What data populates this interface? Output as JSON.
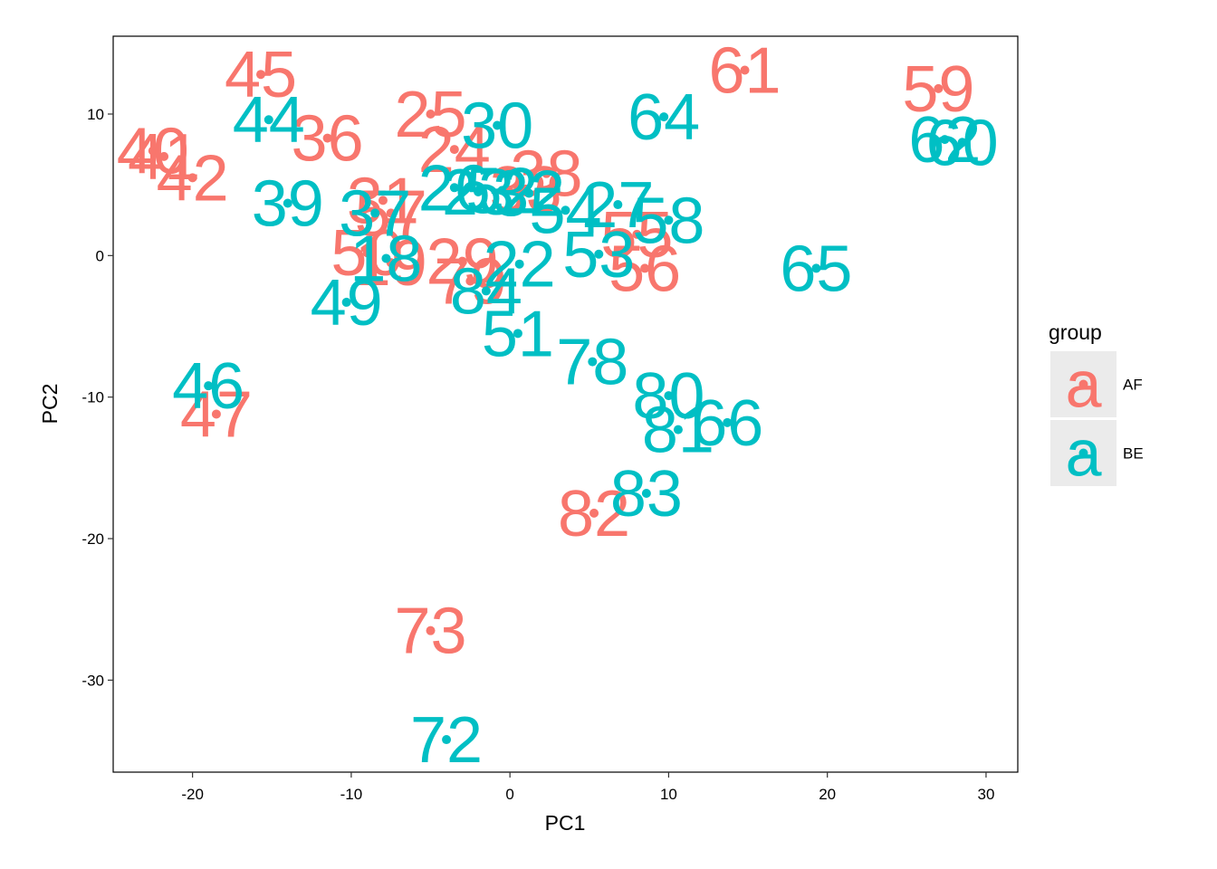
{
  "chart_data": {
    "type": "scatter",
    "title": "",
    "xlabel": "PC1",
    "ylabel": "PC2",
    "xlim": [
      -25,
      32
    ],
    "ylim": [
      -36.5,
      15.5
    ],
    "xticks": [
      -20,
      -10,
      0,
      10,
      20,
      30
    ],
    "yticks": [
      10,
      0,
      -10,
      -20,
      -30
    ],
    "xtick_labels": [
      "-20",
      "-10",
      "0",
      "10",
      "20",
      "30"
    ],
    "ytick_labels": [
      "10",
      "0",
      "-10",
      "-20",
      "-30"
    ],
    "grid": false,
    "legend": {
      "title": "group",
      "position": "right",
      "key_glyph": "a"
    },
    "colors": {
      "AF": "#F8766D",
      "BE": "#00BFC4"
    },
    "series": [
      {
        "name": "AF",
        "points": [
          {
            "label": "45",
            "x": -15.7,
            "y": 12.8
          },
          {
            "label": "61",
            "x": 14.8,
            "y": 13.1
          },
          {
            "label": "59",
            "x": 27.0,
            "y": 11.8
          },
          {
            "label": "25",
            "x": -5.0,
            "y": 10.0
          },
          {
            "label": "36",
            "x": -11.5,
            "y": 8.3
          },
          {
            "label": "24",
            "x": -3.5,
            "y": 7.5
          },
          {
            "label": "40",
            "x": -22.5,
            "y": 7.4
          },
          {
            "label": "41",
            "x": -21.8,
            "y": 7.0
          },
          {
            "label": "42",
            "x": -20.0,
            "y": 5.5
          },
          {
            "label": "38",
            "x": 2.3,
            "y": 5.8
          },
          {
            "label": "33",
            "x": 1.0,
            "y": 4.7
          },
          {
            "label": "31",
            "x": -8.0,
            "y": 3.9
          },
          {
            "label": "57",
            "x": -7.5,
            "y": 3.0
          },
          {
            "label": "55",
            "x": 8.0,
            "y": 1.5
          },
          {
            "label": "50",
            "x": -9.0,
            "y": 0.2
          },
          {
            "label": "19",
            "x": -7.5,
            "y": -0.5
          },
          {
            "label": "29",
            "x": -3.0,
            "y": -0.4
          },
          {
            "label": "79",
            "x": -2.5,
            "y": -1.8
          },
          {
            "label": "56",
            "x": 8.5,
            "y": -0.9
          },
          {
            "label": "47",
            "x": -18.5,
            "y": -11.2
          },
          {
            "label": "82",
            "x": 5.3,
            "y": -18.2
          },
          {
            "label": "73",
            "x": -5.0,
            "y": -26.5
          }
        ]
      },
      {
        "name": "BE",
        "points": [
          {
            "label": "44",
            "x": -15.2,
            "y": 9.6
          },
          {
            "label": "30",
            "x": -0.8,
            "y": 9.2
          },
          {
            "label": "64",
            "x": 9.7,
            "y": 9.8
          },
          {
            "label": "62",
            "x": 27.4,
            "y": 8.2
          },
          {
            "label": "60",
            "x": 28.5,
            "y": 8.0
          },
          {
            "label": "39",
            "x": -14.0,
            "y": 3.7
          },
          {
            "label": "37",
            "x": -8.5,
            "y": 3.0
          },
          {
            "label": "26",
            "x": -3.5,
            "y": 4.8
          },
          {
            "label": "23",
            "x": -2.0,
            "y": 4.5
          },
          {
            "label": "52",
            "x": -0.5,
            "y": 4.6
          },
          {
            "label": "32",
            "x": 1.2,
            "y": 4.4
          },
          {
            "label": "54",
            "x": 3.5,
            "y": 3.2
          },
          {
            "label": "27",
            "x": 6.8,
            "y": 3.6
          },
          {
            "label": "58",
            "x": 10.0,
            "y": 2.5
          },
          {
            "label": "53",
            "x": 5.6,
            "y": 0.1
          },
          {
            "label": "18",
            "x": -7.8,
            "y": -0.2
          },
          {
            "label": "22",
            "x": 0.6,
            "y": -0.6
          },
          {
            "label": "84",
            "x": -1.5,
            "y": -2.5
          },
          {
            "label": "49",
            "x": -10.3,
            "y": -3.3
          },
          {
            "label": "65",
            "x": 19.3,
            "y": -0.9
          },
          {
            "label": "51",
            "x": 0.5,
            "y": -5.5
          },
          {
            "label": "78",
            "x": 5.2,
            "y": -7.5
          },
          {
            "label": "80",
            "x": 10.0,
            "y": -9.9
          },
          {
            "label": "46",
            "x": -19.0,
            "y": -9.2
          },
          {
            "label": "81",
            "x": 10.6,
            "y": -12.3
          },
          {
            "label": "66",
            "x": 13.7,
            "y": -11.8
          },
          {
            "label": "83",
            "x": 8.6,
            "y": -16.8
          },
          {
            "label": "72",
            "x": -4.0,
            "y": -34.2
          }
        ]
      }
    ]
  }
}
